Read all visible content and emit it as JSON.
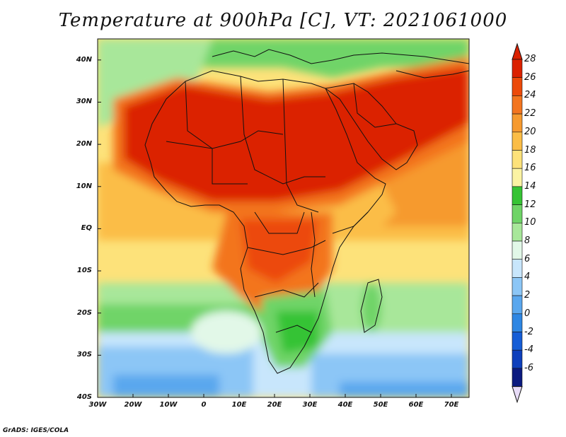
{
  "title": "Temperature at 900hPa [C], VT: 2021061000",
  "footer": "GrADS: IGES/COLA",
  "y_axis": {
    "labels": [
      "40N",
      "30N",
      "20N",
      "10N",
      "EQ",
      "10S",
      "20S",
      "30S",
      "40S"
    ],
    "values": [
      40,
      30,
      20,
      10,
      0,
      -10,
      -20,
      -30,
      -40
    ]
  },
  "x_axis": {
    "labels": [
      "30W",
      "20W",
      "10W",
      "0",
      "10E",
      "20E",
      "30E",
      "40E",
      "50E",
      "60E",
      "70E"
    ],
    "values": [
      -30,
      -20,
      -10,
      0,
      10,
      20,
      30,
      40,
      50,
      60,
      70
    ]
  },
  "colorbar": {
    "labels": [
      "28",
      "26",
      "24",
      "22",
      "20",
      "18",
      "16",
      "14",
      "12",
      "10",
      "8",
      "6",
      "4",
      "2",
      "0",
      "-2",
      "-4",
      "-6"
    ],
    "colors": [
      "#db2100",
      "#ec4a0a",
      "#f3751f",
      "#f69a2f",
      "#fbbd46",
      "#fde27a",
      "#fbf3a3",
      "#36c334",
      "#6fd467",
      "#a8e79a",
      "#e2f8e8",
      "#c8e6fc",
      "#8cc6f6",
      "#5aa7ee",
      "#2e86e3",
      "#155dd6",
      "#0e3fbc",
      "#0b1a80"
    ],
    "over_color": "#db2100",
    "under_color": "#e8dcf8"
  },
  "map_extent": {
    "lon_min": -30,
    "lon_max": 75,
    "lat_min": -40,
    "lat_max": 45
  }
}
